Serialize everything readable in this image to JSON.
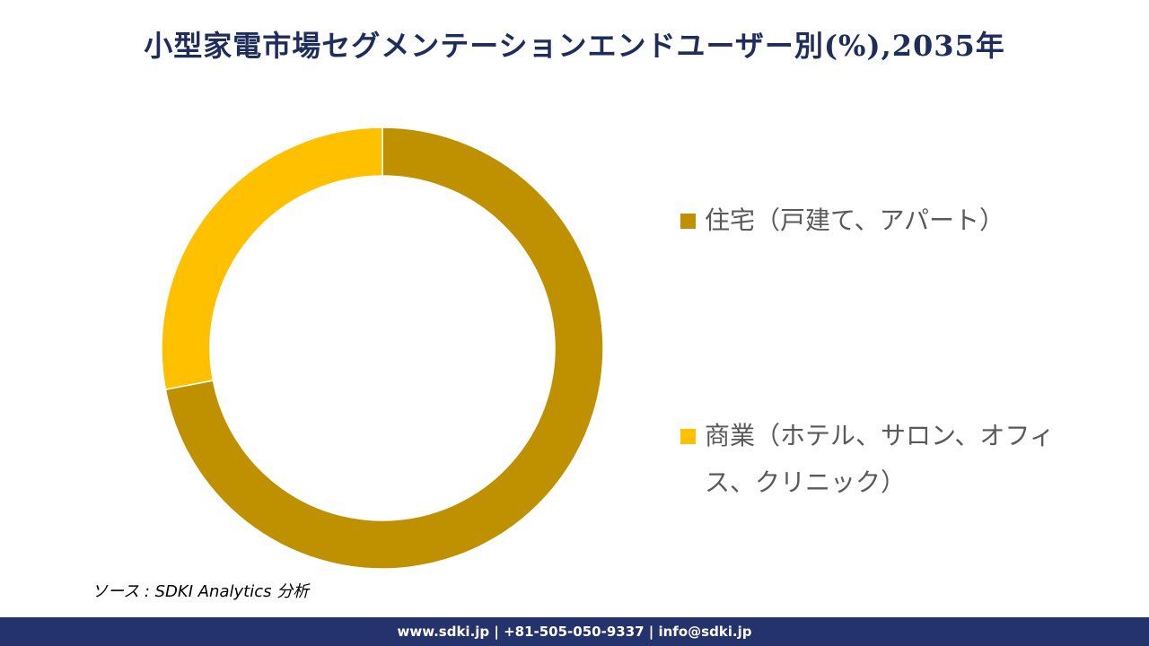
{
  "title": "小型家電市場セグメンテーションエンドユーザー別(%),2035年",
  "chart_data": {
    "type": "pie",
    "style": "donut",
    "categories": [
      "住宅（戸建て、アパート）",
      "商業（ホテル、サロン、オフィス、クリニック）"
    ],
    "values": [
      72,
      28
    ],
    "colors": [
      "#bf9000",
      "#ffc000"
    ],
    "legend_placement": "right"
  },
  "source": "ソース : SDKI Analytics 分析",
  "footer": "www.sdki.jp | +81-505-050-9337 | info@sdki.jp"
}
